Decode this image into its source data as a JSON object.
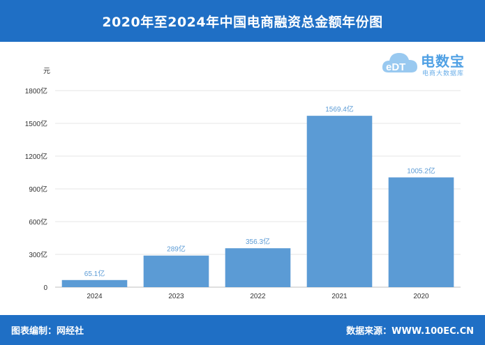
{
  "header": {
    "title": "2020年至2024年中国电商融资总金额年份图"
  },
  "logo": {
    "brand": "电数宝",
    "sub": "电商大数据库",
    "mark": "eDT"
  },
  "footer": {
    "left": "图表编制：网经社",
    "right": "数据来源：WWW.100EC.CN"
  },
  "colors": {
    "header": "#1f6fc5",
    "bar": "#5b9bd5",
    "label": "#5b9bd5"
  },
  "chart_data": {
    "type": "bar",
    "title": "2020年至2024年中国电商融资总金额年份图",
    "ylabel": "元",
    "categories": [
      "2024",
      "2023",
      "2022",
      "2021",
      "2020"
    ],
    "values": [
      65.1,
      289,
      356.3,
      1569.4,
      1005.2
    ],
    "value_labels": [
      "65.1亿",
      "289亿",
      "356.3亿",
      "1569.4亿",
      "1005.2亿"
    ],
    "ylim": [
      0,
      1800
    ],
    "yticks": [
      0,
      300,
      600,
      900,
      1200,
      1500,
      1800
    ],
    "ytick_labels": [
      "0",
      "300亿",
      "600亿",
      "900亿",
      "1200亿",
      "1500亿",
      "1800亿"
    ],
    "grid": true,
    "legend": "none"
  }
}
